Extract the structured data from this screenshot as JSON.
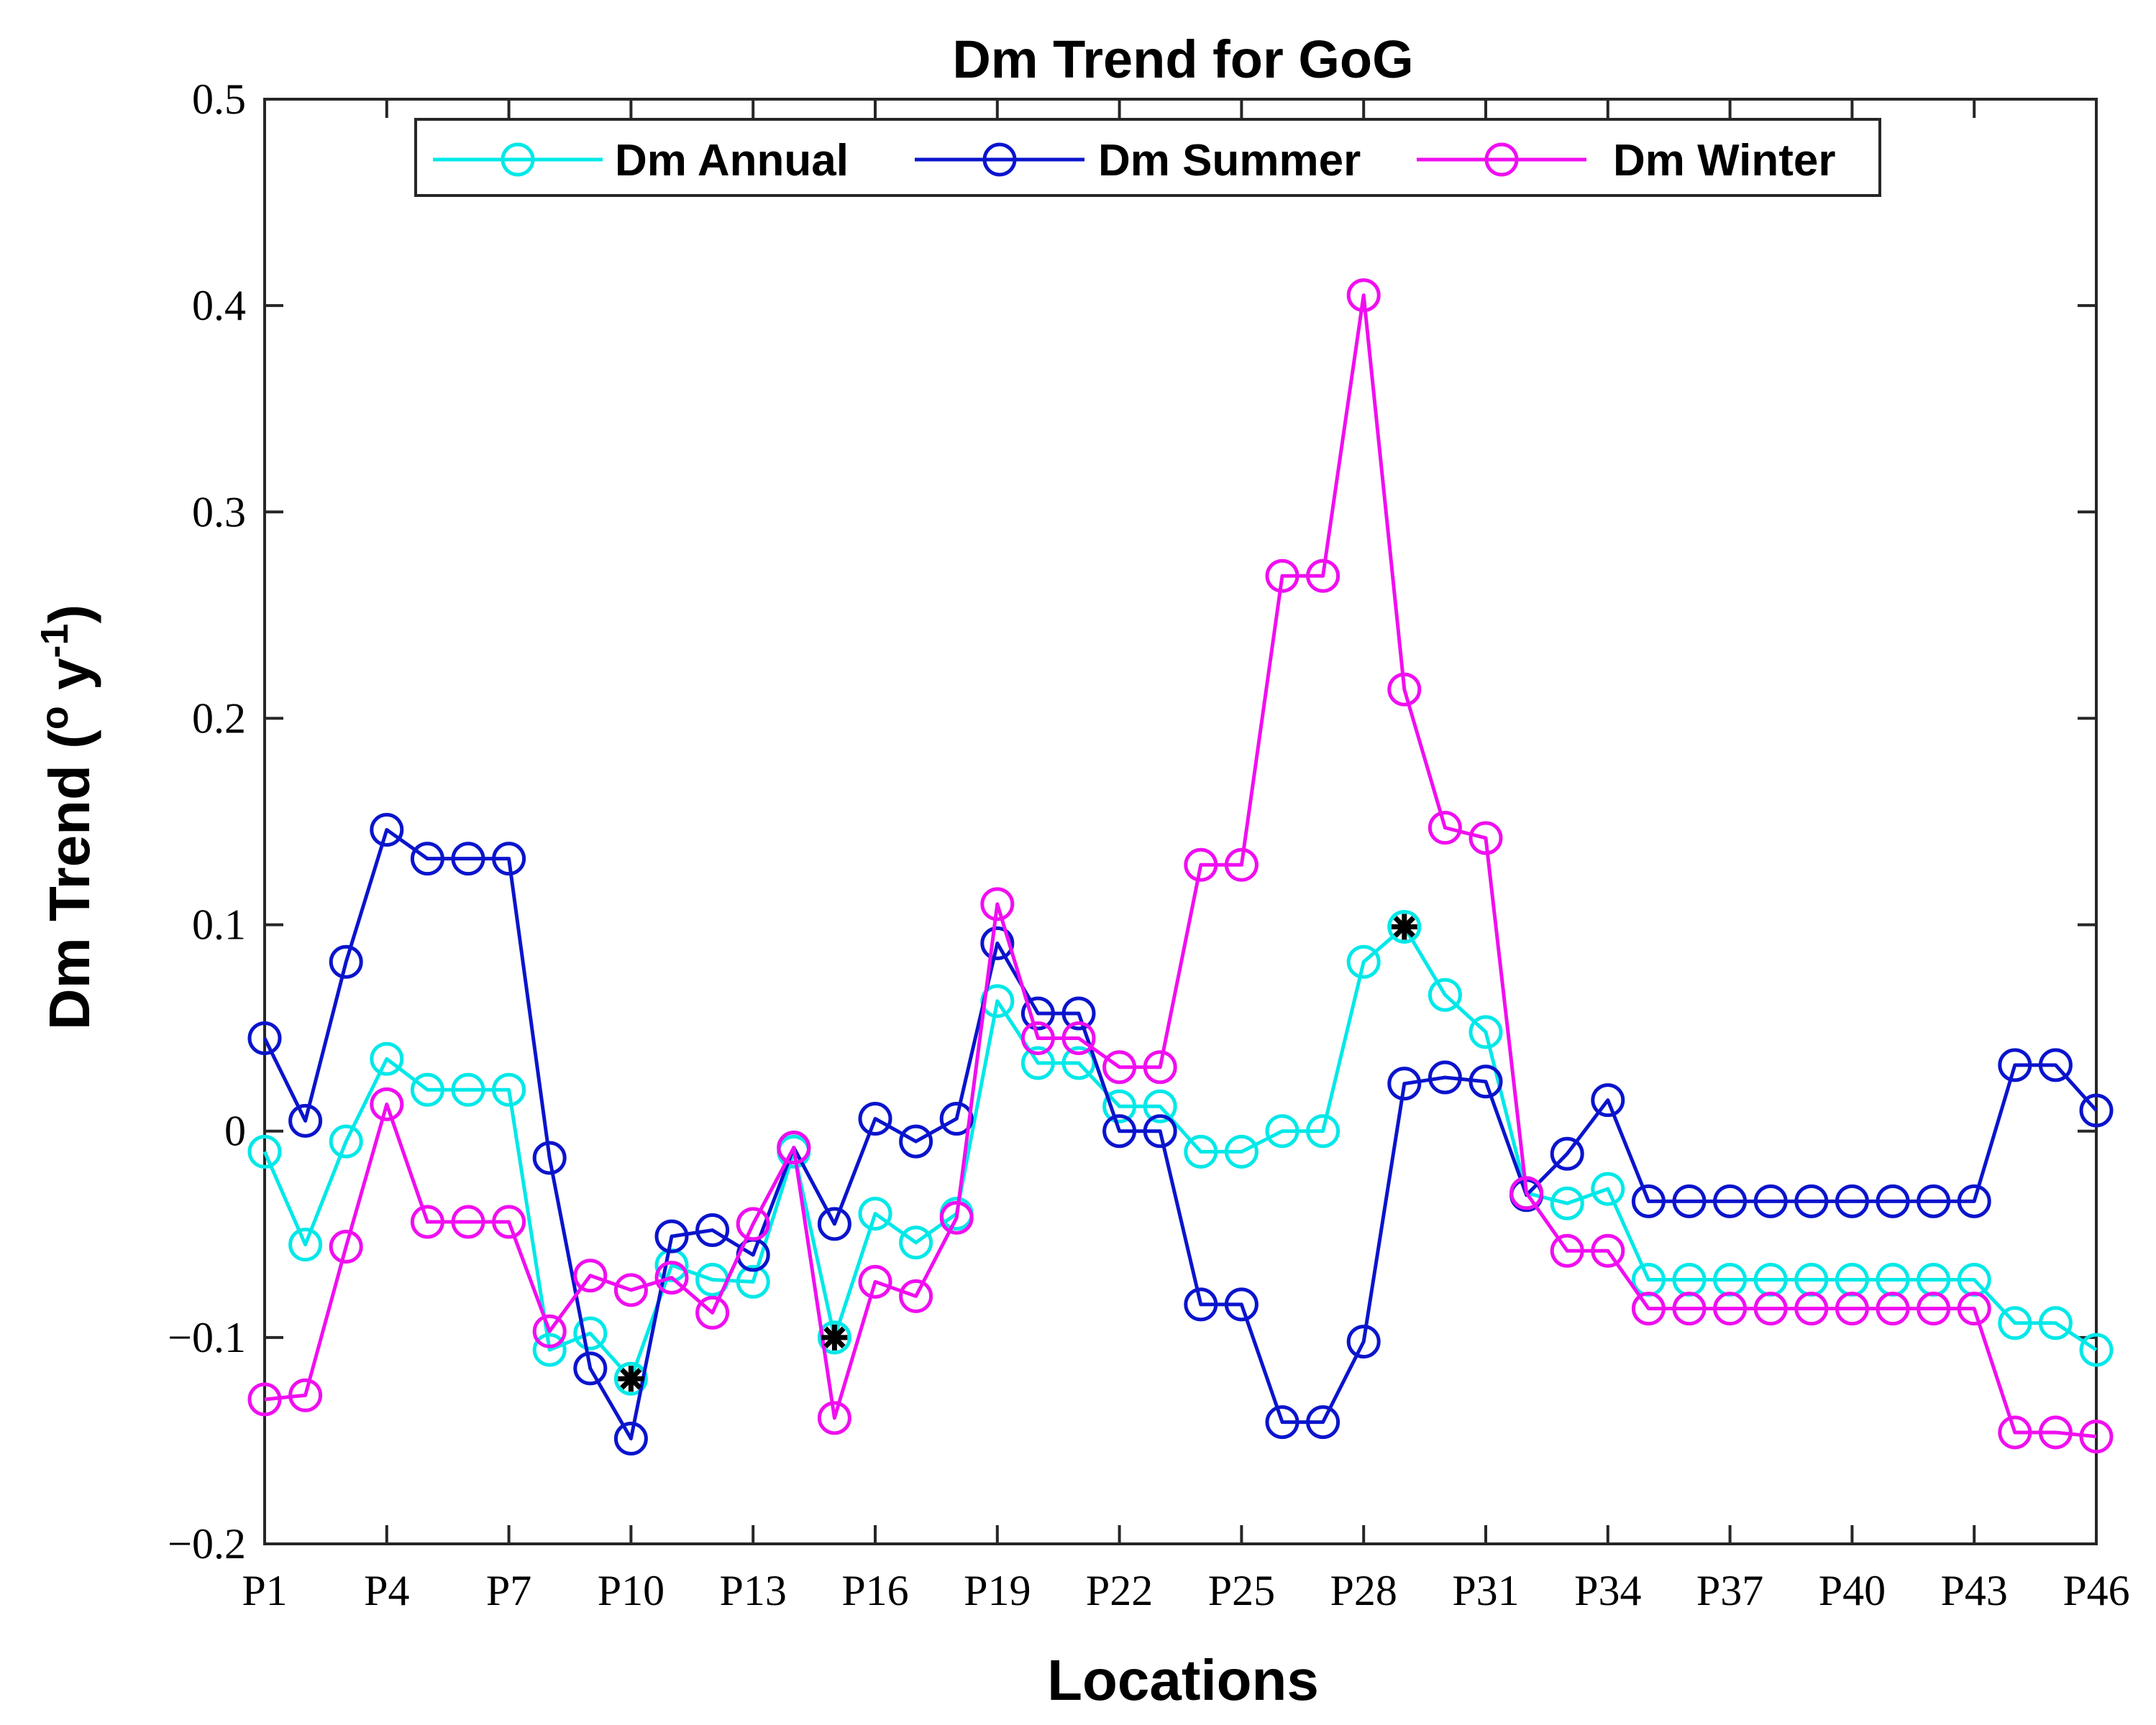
{
  "chart_data": {
    "type": "line",
    "title": "Dm Trend for GoG",
    "xlabel": "Locations",
    "ylabel": "Dm Trend (",
    "ylabel_degree": "o",
    "ylabel_unit": " y",
    "ylabel_exp": "-1",
    "ylabel_close": ")",
    "ylim": [
      -0.2,
      0.5
    ],
    "yticks": [
      -0.2,
      -0.1,
      0,
      0.1,
      0.2,
      0.3,
      0.4,
      0.5
    ],
    "ytick_labels": [
      "−0.2",
      "−0.1",
      "0",
      "0.1",
      "0.2",
      "0.3",
      "0.4",
      "0.5"
    ],
    "grid": false,
    "legend_position": "top-center",
    "xtick_labels": [
      "P1",
      "P4",
      "P7",
      "P10",
      "P13",
      "P16",
      "P19",
      "P22",
      "P25",
      "P28",
      "P31",
      "P34",
      "P37",
      "P40",
      "P43",
      "P46"
    ],
    "xtick_positions": [
      1,
      4,
      7,
      10,
      13,
      16,
      19,
      22,
      25,
      28,
      31,
      34,
      37,
      40,
      43,
      46
    ],
    "x": [
      1,
      2,
      3,
      4,
      5,
      6,
      7,
      8,
      9,
      10,
      11,
      12,
      13,
      14,
      15,
      16,
      17,
      18,
      19,
      20,
      21,
      22,
      23,
      24,
      25,
      26,
      27,
      28,
      29,
      30,
      31,
      32,
      33,
      34,
      35,
      36,
      37,
      38,
      39,
      40,
      41,
      42,
      43,
      44,
      45,
      46
    ],
    "series": [
      {
        "name": "Dm Annual",
        "color": "#00e8e8",
        "values": [
          -0.01,
          -0.055,
          -0.005,
          0.035,
          0.02,
          0.02,
          0.02,
          -0.106,
          -0.098,
          -0.12,
          -0.065,
          -0.072,
          -0.073,
          -0.01,
          -0.1,
          -0.04,
          -0.054,
          -0.04,
          0.063,
          0.033,
          0.033,
          0.012,
          0.012,
          -0.01,
          -0.01,
          0.0,
          0.0,
          0.082,
          0.099,
          0.066,
          0.048,
          -0.03,
          -0.035,
          -0.028,
          -0.072,
          -0.072,
          -0.072,
          -0.072,
          -0.072,
          -0.072,
          -0.072,
          -0.072,
          -0.072,
          -0.093,
          -0.093,
          -0.106
        ]
      },
      {
        "name": "Dm Summer",
        "color": "#0a14cc",
        "values": [
          0.045,
          0.005,
          0.082,
          0.146,
          0.132,
          0.132,
          0.132,
          -0.013,
          -0.115,
          -0.149,
          -0.051,
          -0.048,
          -0.06,
          -0.008,
          -0.045,
          0.006,
          -0.005,
          0.006,
          0.091,
          0.057,
          0.057,
          0.0,
          0.0,
          -0.084,
          -0.084,
          -0.141,
          -0.141,
          -0.102,
          0.023,
          0.026,
          0.024,
          -0.031,
          -0.011,
          0.015,
          -0.034,
          -0.034,
          -0.034,
          -0.034,
          -0.034,
          -0.034,
          -0.034,
          -0.034,
          -0.034,
          0.032,
          0.032,
          0.01
        ]
      },
      {
        "name": "Dm Winter",
        "color": "#f00ef0",
        "values": [
          -0.13,
          -0.128,
          -0.056,
          0.013,
          -0.044,
          -0.044,
          -0.044,
          -0.097,
          -0.07,
          -0.077,
          -0.071,
          -0.088,
          -0.045,
          -0.008,
          -0.139,
          -0.073,
          -0.08,
          -0.042,
          0.11,
          0.045,
          0.045,
          0.031,
          0.031,
          0.129,
          0.129,
          0.269,
          0.269,
          0.405,
          0.214,
          0.147,
          0.142,
          -0.03,
          -0.058,
          -0.058,
          -0.086,
          -0.086,
          -0.086,
          -0.086,
          -0.086,
          -0.086,
          -0.086,
          -0.086,
          -0.086,
          -0.146,
          -0.146,
          -0.148
        ]
      }
    ],
    "significance_markers": [
      {
        "series": "Dm Annual",
        "x": 10,
        "y": -0.12
      },
      {
        "series": "Dm Annual",
        "x": 15,
        "y": -0.1
      },
      {
        "series": "Dm Annual",
        "x": 29,
        "y": 0.099
      }
    ]
  }
}
